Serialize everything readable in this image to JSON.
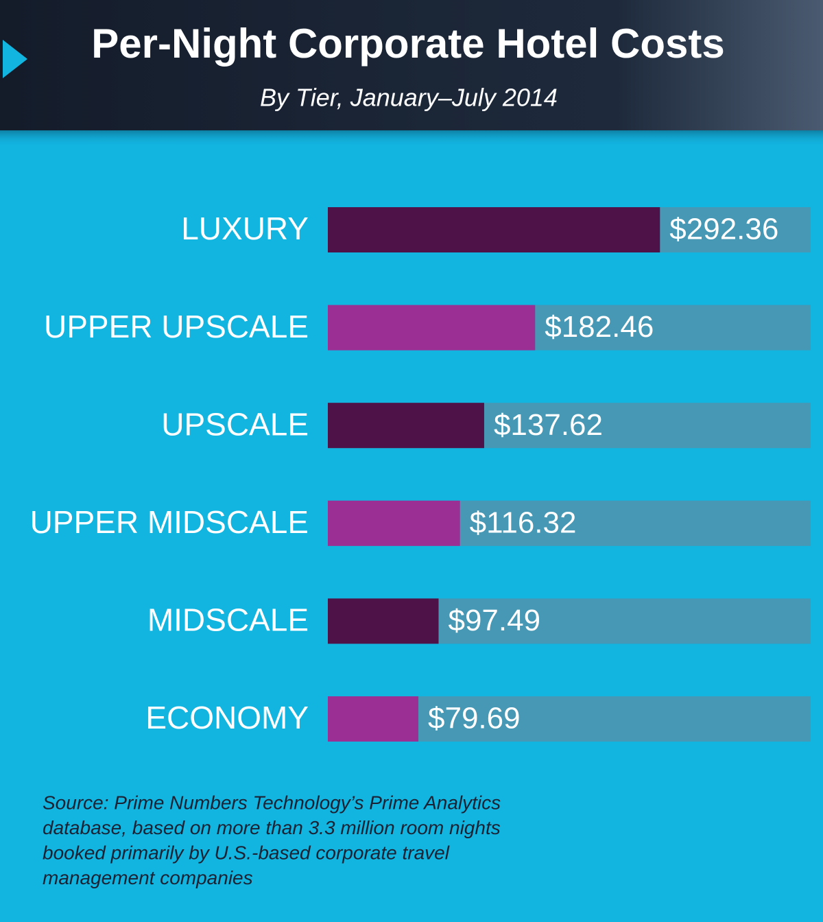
{
  "chart_data": {
    "type": "bar",
    "orientation": "horizontal",
    "title": "Per-Night Corporate Hotel Costs",
    "subtitle": "By Tier, January–July 2014",
    "categories": [
      "LUXURY",
      "UPPER UPSCALE",
      "UPSCALE",
      "UPPER MIDSCALE",
      "MIDSCALE",
      "ECONOMY"
    ],
    "values": [
      292.36,
      182.46,
      137.62,
      116.32,
      97.49,
      79.69
    ],
    "value_labels": [
      "$292.36",
      "$182.46",
      "$137.62",
      "$116.32",
      "$97.49",
      "$79.69"
    ],
    "colors": [
      "#4e1248",
      "#9b2f93",
      "#4e1248",
      "#9b2f93",
      "#4e1248",
      "#9b2f93"
    ],
    "xlim": [
      0,
      425
    ],
    "source": [
      "Source: Prime Numbers Technology’s Prime Analytics",
      "database, based on more than 3.3 million room nights",
      "booked primarily by U.S.-based corporate travel",
      "management companies"
    ]
  }
}
